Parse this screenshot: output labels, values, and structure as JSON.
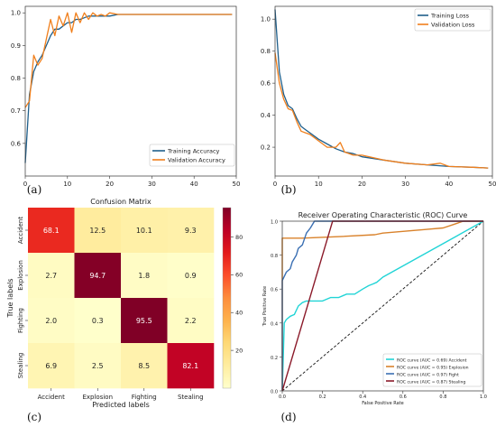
{
  "chart_data": [
    {
      "id": "a",
      "panel_label": "(a)",
      "type": "line",
      "xlim": [
        0,
        50
      ],
      "ylim": [
        0.5,
        1.02
      ],
      "xticks": [
        "0",
        "10",
        "20",
        "30",
        "40",
        "50"
      ],
      "yticks": [
        "0.6",
        "0.7",
        "0.8",
        "0.9",
        "1.0"
      ],
      "legend_position": "lower-right",
      "series": [
        {
          "name": "Training Accuracy",
          "color": "#1f5f8b",
          "x": [
            0,
            1,
            2,
            3,
            4,
            5,
            6,
            7,
            8,
            9,
            10,
            11,
            12,
            13,
            14,
            15,
            16,
            17,
            18,
            19,
            20,
            22,
            25,
            30,
            35,
            40,
            45,
            49
          ],
          "y": [
            0.54,
            0.75,
            0.82,
            0.85,
            0.87,
            0.9,
            0.93,
            0.95,
            0.95,
            0.96,
            0.97,
            0.97,
            0.98,
            0.98,
            0.985,
            0.99,
            0.99,
            0.99,
            0.99,
            0.99,
            0.99,
            0.995,
            0.995,
            0.995,
            0.995,
            0.995,
            0.995,
            0.995
          ]
        },
        {
          "name": "Validation Accuracy",
          "color": "#f07f1c",
          "x": [
            0,
            1,
            2,
            3,
            4,
            5,
            6,
            7,
            8,
            9,
            10,
            11,
            12,
            13,
            14,
            15,
            16,
            17,
            18,
            19,
            20,
            22,
            25,
            30,
            35,
            40,
            45,
            49
          ],
          "y": [
            0.71,
            0.73,
            0.87,
            0.84,
            0.86,
            0.92,
            0.98,
            0.93,
            0.99,
            0.96,
            1.0,
            0.94,
            1.0,
            0.97,
            1.0,
            0.98,
            1.0,
            0.99,
            0.995,
            0.99,
            1.0,
            0.995,
            0.995,
            0.995,
            0.995,
            0.995,
            0.995,
            0.995
          ]
        }
      ]
    },
    {
      "id": "b",
      "panel_label": "(b)",
      "type": "line",
      "xlim": [
        0,
        50
      ],
      "ylim": [
        0.02,
        1.08
      ],
      "xticks": [
        "0",
        "10",
        "20",
        "30",
        "40",
        "50"
      ],
      "yticks": [
        "0.2",
        "0.4",
        "0.6",
        "0.8",
        "1.0"
      ],
      "legend_position": "top-right",
      "series": [
        {
          "name": "Training Loss",
          "color": "#1f5f8b",
          "x": [
            0,
            1,
            2,
            3,
            4,
            5,
            6,
            7,
            8,
            9,
            10,
            12,
            14,
            16,
            18,
            20,
            25,
            30,
            35,
            40,
            45,
            49
          ],
          "y": [
            1.06,
            0.67,
            0.53,
            0.46,
            0.44,
            0.38,
            0.33,
            0.31,
            0.29,
            0.27,
            0.25,
            0.22,
            0.19,
            0.17,
            0.16,
            0.14,
            0.12,
            0.1,
            0.09,
            0.08,
            0.075,
            0.07
          ]
        },
        {
          "name": "Validation Loss",
          "color": "#f07f1c",
          "x": [
            0,
            1,
            2,
            3,
            4,
            5,
            6,
            7,
            8,
            9,
            10,
            12,
            14,
            15,
            16,
            18,
            20,
            25,
            30,
            35,
            38,
            40,
            45,
            49
          ],
          "y": [
            0.79,
            0.6,
            0.5,
            0.44,
            0.43,
            0.36,
            0.3,
            0.29,
            0.28,
            0.26,
            0.24,
            0.2,
            0.2,
            0.23,
            0.17,
            0.15,
            0.15,
            0.12,
            0.1,
            0.09,
            0.1,
            0.08,
            0.075,
            0.07
          ]
        }
      ]
    },
    {
      "id": "c",
      "panel_label": "(c)",
      "type": "heatmap",
      "title": "Confusion Matrix",
      "xlabel": "Predicted labels",
      "ylabel": "True labels",
      "x_categories": [
        "Accident",
        "Explosion",
        "Fighting",
        "Stealing"
      ],
      "y_categories": [
        "Accident",
        "Explosion",
        "Fighting",
        "Stealing"
      ],
      "values": [
        [
          68.1,
          12.5,
          10.1,
          9.3
        ],
        [
          2.7,
          94.7,
          1.8,
          0.9
        ],
        [
          2.0,
          0.3,
          95.5,
          2.2
        ],
        [
          6.9,
          2.5,
          8.5,
          82.1
        ]
      ],
      "color_scale": "YlOrRd",
      "vmin": 0,
      "vmax": 95.5,
      "colorbar_ticks": [
        "20",
        "40",
        "60",
        "80"
      ]
    },
    {
      "id": "d",
      "panel_label": "(d)",
      "type": "line",
      "title": "Receiver Operating Characteristic (ROC) Curve",
      "xlabel": "False Positive Rate",
      "ylabel": "True Positive Rate",
      "xlim": [
        0,
        1
      ],
      "ylim": [
        0,
        1
      ],
      "xticks": [
        "0.0",
        "0.2",
        "0.4",
        "0.6",
        "0.8",
        "1.0"
      ],
      "yticks": [
        "0.0",
        "0.2",
        "0.4",
        "0.6",
        "0.8",
        "1.0"
      ],
      "legend_position": "lower-right",
      "series": [
        {
          "name": "ROC curve (AUC = 0.69) Accident",
          "color": "#21d4d6",
          "x": [
            0,
            0.01,
            0.02,
            0.04,
            0.06,
            0.08,
            0.1,
            0.12,
            0.2,
            0.24,
            0.28,
            0.32,
            0.36,
            0.4,
            0.43,
            0.45,
            0.47,
            0.5,
            1.0
          ],
          "y": [
            0,
            0.4,
            0.42,
            0.44,
            0.45,
            0.5,
            0.52,
            0.53,
            0.53,
            0.55,
            0.55,
            0.57,
            0.57,
            0.6,
            0.62,
            0.63,
            0.64,
            0.67,
            1.0
          ]
        },
        {
          "name": "ROC curve (AUC = 0.95) Explosion",
          "color": "#d9822b",
          "x": [
            0,
            0.0,
            0.1,
            0.3,
            0.46,
            0.5,
            0.6,
            0.7,
            0.8,
            0.85,
            0.9,
            1.0
          ],
          "y": [
            0,
            0.9,
            0.9,
            0.91,
            0.92,
            0.93,
            0.94,
            0.95,
            0.96,
            0.98,
            1.0,
            1.0
          ]
        },
        {
          "name": "ROC curve (AUC = 0.97) Fight",
          "color": "#3a6fb3",
          "x": [
            0,
            0.0,
            0.02,
            0.04,
            0.05,
            0.07,
            0.08,
            0.1,
            0.12,
            0.14,
            0.16,
            0.18,
            1.0
          ],
          "y": [
            0,
            0.65,
            0.7,
            0.72,
            0.76,
            0.8,
            0.84,
            0.86,
            0.93,
            0.96,
            1.0,
            1.0,
            1.0
          ]
        },
        {
          "name": "ROC curve (AUC = 0.87) Stealing",
          "color": "#8b1a2a",
          "x": [
            0,
            0.25,
            1.0
          ],
          "y": [
            0,
            1.0,
            1.0
          ]
        }
      ]
    }
  ]
}
